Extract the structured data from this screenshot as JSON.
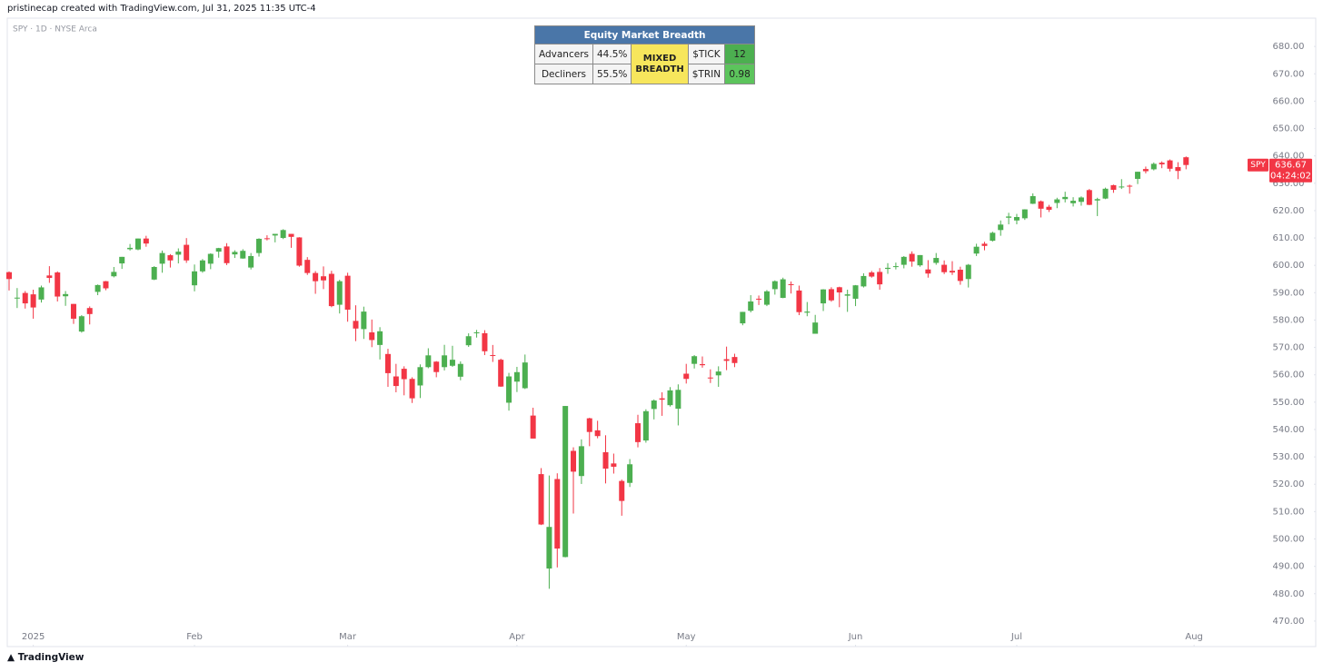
{
  "header": {
    "attribution": "pristinecap created with TradingView.com, Jul 31, 2025 11:35 UTC-4"
  },
  "footer": {
    "brand": "TradingView"
  },
  "breadth_table": {
    "title": "Equity Market Breadth",
    "status": "MIXED BREADTH",
    "rows": [
      [
        "Advancers",
        "44.5%",
        "$TICK",
        "12"
      ],
      [
        "Decliners",
        "55.5%",
        "$TRIN",
        "0.98"
      ]
    ]
  },
  "chart_data": {
    "type": "candlestick",
    "subtitle": "SPY · 1D · NYSE Arca",
    "symbol_label": "SPY",
    "countdown": "04:24:02",
    "up_color": "#4caf50",
    "down_color": "#f23645",
    "grid": false,
    "xlim": [
      0,
      156
    ],
    "xticks": [
      {
        "value": 3,
        "label": "2025"
      },
      {
        "value": 23,
        "label": "Feb"
      },
      {
        "value": 42,
        "label": "Mar"
      },
      {
        "value": 63,
        "label": "Apr"
      },
      {
        "value": 84,
        "label": "May"
      },
      {
        "value": 105,
        "label": "Jun"
      },
      {
        "value": 125,
        "label": "Jul"
      },
      {
        "value": 147,
        "label": "Aug"
      }
    ],
    "ylim": [
      463,
      690
    ],
    "yticks": [
      {
        "value": 470,
        "label": "470.00"
      },
      {
        "value": 480,
        "label": "480.00"
      },
      {
        "value": 490,
        "label": "490.00"
      },
      {
        "value": 500,
        "label": "500.00"
      },
      {
        "value": 510,
        "label": "510.00"
      },
      {
        "value": 520,
        "label": "520.00"
      },
      {
        "value": 530,
        "label": "530.00"
      },
      {
        "value": 540,
        "label": "540.00"
      },
      {
        "value": 550,
        "label": "550.00"
      },
      {
        "value": 560,
        "label": "560.00"
      },
      {
        "value": 570,
        "label": "570.00"
      },
      {
        "value": 580,
        "label": "580.00"
      },
      {
        "value": 590,
        "label": "590.00"
      },
      {
        "value": 600,
        "label": "600.00"
      },
      {
        "value": 610,
        "label": "610.00"
      },
      {
        "value": 620,
        "label": "620.00"
      },
      {
        "value": 630,
        "label": "630.00"
      },
      {
        "value": 640,
        "label": "640.00"
      },
      {
        "value": 650,
        "label": "650.00"
      },
      {
        "value": 660,
        "label": "660.00"
      },
      {
        "value": 670,
        "label": "670.00"
      },
      {
        "value": 680,
        "label": "680.00"
      }
    ],
    "open": [
      597.5,
      587.9,
      589.9,
      589.4,
      587.5,
      596.3,
      597.4,
      588.7,
      585.9,
      575.8,
      584.4,
      590.3,
      594.2,
      596.0,
      600.7,
      605.9,
      605.8,
      609.8,
      594.8,
      600.6,
      603.7,
      603.9,
      607.5,
      592.7,
      597.8,
      600.6,
      605.0,
      606.9,
      604.0,
      602.5,
      599.2,
      604.5,
      609.9,
      610.9,
      610.0,
      611.5,
      610.2,
      602.0,
      597.2,
      596.0,
      596.9,
      585.6,
      596.2,
      579.7,
      576.7,
      575.5,
      570.9,
      567.6,
      559.4,
      562.2,
      558.5,
      556.1,
      562.8,
      564.8,
      562.8,
      563.3,
      559.3,
      570.8,
      575.3,
      575.2,
      567.2,
      565.5,
      549.8,
      557.5,
      555.1,
      545.1,
      523.7,
      489.2,
      521.9,
      493.4,
      532.2,
      523.0,
      544.1,
      539.7,
      531.7,
      527.6,
      521.2,
      520.5,
      542.3,
      536.0,
      547.5,
      551.4,
      548.9,
      547.6,
      560.4,
      564.0,
      563.9,
      559.0,
      559.8,
      565.7,
      566.5,
      578.8,
      583.4,
      587.8,
      585.6,
      591.3,
      588.1,
      593.1,
      590.8,
      582.7,
      575.0,
      586.1,
      591.3,
      592.0,
      588.9,
      587.8,
      592.3,
      597.4,
      597.6,
      598.7,
      599.7,
      600.2,
      604.2,
      600.0,
      598.5,
      600.9,
      600.2,
      598.0,
      598.4,
      595.0,
      604.3,
      607.9,
      608.99,
      612.9,
      617.4,
      616.4,
      617.2,
      622.5,
      623.4,
      621.4,
      622.8,
      624.2,
      622.7,
      623.2,
      627.5,
      623.7,
      624.4,
      629.3,
      628.8,
      629.1,
      631.6,
      635.2,
      635.1,
      637.5,
      638.35,
      635.9,
      639.5
    ],
    "high": [
      597.8,
      591.7,
      590.6,
      591.1,
      592.6,
      599.7,
      597.8,
      590.6,
      585.9,
      581.8,
      585.0,
      593.0,
      594.3,
      599.4,
      603.1,
      607.8,
      609.8,
      610.8,
      599.7,
      605.4,
      604.1,
      606.2,
      609.96,
      600.3,
      602.3,
      604.4,
      606.4,
      608.1,
      605.5,
      605.9,
      604.5,
      609.9,
      610.99,
      611.5,
      613.2,
      611.5,
      610.3,
      603.0,
      597.9,
      599.6,
      598.0,
      594.7,
      597.3,
      585.4,
      584.9,
      580.2,
      577.4,
      569.5,
      564.0,
      563.1,
      559.1,
      563.8,
      569.7,
      565.0,
      570.95,
      570.6,
      564.9,
      575.15,
      576.4,
      576.3,
      570.9,
      565.9,
      560.7,
      562.9,
      567.4,
      547.97,
      525.9,
      523.2,
      524.0,
      548.6,
      533.5,
      536.4,
      544.3,
      543.2,
      537.9,
      531.2,
      521.7,
      529.2,
      545.4,
      547.4,
      551.0,
      553.6,
      555.5,
      556.5,
      564.0,
      567.2,
      566.7,
      562.0,
      563.1,
      570.3,
      567.7,
      583.0,
      589.1,
      588.97,
      590.97,
      594.5,
      595.5,
      594.1,
      592.6,
      586.6,
      581.9,
      591.3,
      592.0,
      592.2,
      591.1,
      592.8,
      597.1,
      597.97,
      599.0,
      600.8,
      601.0,
      603.4,
      605.1,
      603.75,
      601.9,
      604.5,
      601.8,
      601.5,
      599.5,
      600.5,
      607.9,
      608.6,
      612.3,
      616.4,
      619.2,
      618.8,
      620.5,
      626.3,
      623.7,
      622.1,
      624.7,
      626.9,
      624.9,
      625.2,
      627.9,
      624.7,
      628.4,
      629.5,
      631.5,
      629.5,
      634.2,
      636.1,
      637.6,
      638.0,
      638.7,
      637.7,
      639.8
    ],
    "low": [
      590.8,
      584.4,
      584.2,
      580.5,
      586.4,
      593.6,
      586.8,
      585.2,
      578.6,
      575.4,
      578.4,
      589.1,
      590.9,
      595.6,
      598.7,
      605.4,
      605.5,
      606.8,
      594.6,
      597.3,
      599.2,
      600.7,
      600.9,
      590.5,
      597.3,
      598.6,
      602.8,
      600.1,
      602.7,
      602.4,
      598.5,
      603.2,
      609.1,
      608.4,
      609.6,
      606.4,
      599.5,
      596.5,
      589.6,
      591.3,
      584.7,
      582.4,
      579.4,
      572.3,
      573.1,
      570.1,
      565.6,
      555.6,
      553.6,
      552.5,
      549.7,
      551.5,
      562.4,
      559.1,
      561.6,
      562.9,
      558.0,
      570.2,
      573.6,
      567.2,
      564.7,
      555.6,
      546.9,
      553.7,
      554.8,
      536.7,
      505.1,
      481.8,
      489.6,
      493.3,
      509.3,
      520.1,
      533.9,
      536.8,
      520.3,
      523.9,
      508.5,
      519.0,
      533.5,
      535.2,
      543.7,
      545.0,
      548.4,
      541.5,
      556.8,
      562.3,
      562.6,
      557.0,
      555.6,
      561.7,
      562.8,
      578.1,
      582.8,
      585.5,
      585.1,
      589.3,
      588.0,
      589.7,
      581.8,
      581.4,
      575.0,
      583.3,
      586.7,
      584.7,
      583.0,
      585.1,
      591.9,
      595.5,
      591.1,
      596.9,
      598.5,
      598.9,
      599.5,
      599.5,
      595.5,
      600.2,
      596.8,
      596.5,
      592.9,
      591.9,
      603.4,
      605.5,
      608.7,
      610.8,
      615.0,
      615.0,
      616.6,
      622.4,
      617.5,
      619.5,
      620.9,
      623.0,
      621.5,
      621.8,
      622.0,
      618.0,
      624.2,
      626.5,
      627.9,
      626.2,
      629.7,
      633.6,
      634.7,
      635.5,
      634.3,
      631.5,
      635.1
    ],
    "close": [
      595.0,
      588.2,
      586.1,
      584.6,
      591.95,
      595.4,
      588.6,
      589.5,
      580.5,
      581.4,
      582.2,
      592.8,
      591.6,
      597.6,
      603.1,
      606.4,
      609.8,
      607.97,
      599.4,
      604.5,
      601.8,
      605.0,
      601.8,
      597.8,
      601.8,
      604.2,
      606.3,
      600.8,
      604.9,
      605.3,
      603.4,
      609.7,
      609.7,
      611.5,
      612.9,
      610.4,
      599.9,
      597.2,
      594.2,
      594.5,
      585.1,
      594.2,
      583.8,
      576.9,
      583.1,
      572.7,
      575.9,
      560.6,
      555.9,
      558.4,
      551.4,
      562.8,
      567.1,
      561.0,
      567.1,
      565.5,
      563.98,
      574.1,
      575.5,
      568.6,
      567.1,
      555.7,
      559.4,
      560.97,
      564.5,
      536.7,
      505.3,
      504.4,
      496.5,
      548.6,
      524.6,
      533.9,
      539.1,
      537.6,
      525.7,
      526.4,
      513.9,
      527.3,
      535.4,
      546.7,
      550.6,
      550.9,
      554.3,
      554.5,
      558.5,
      566.8,
      563.5,
      558.8,
      561.2,
      565.1,
      564.3,
      582.99,
      586.8,
      587.6,
      590.5,
      594.2,
      594.9,
      592.9,
      582.9,
      583.1,
      579.1,
      591.2,
      587.2,
      590.1,
      589.4,
      592.7,
      596.1,
      595.9,
      593.05,
      599.1,
      599.7,
      603.1,
      601.4,
      603.75,
      597.0,
      602.7,
      597.5,
      597.4,
      594.3,
      600.2,
      606.8,
      607.1,
      611.9,
      614.9,
      617.85,
      617.65,
      620.45,
      625.3,
      620.7,
      620.3,
      624.1,
      625.0,
      623.6,
      624.8,
      622.1,
      624.2,
      628.0,
      627.6,
      628.8,
      628.9,
      634.2,
      634.4,
      637.1,
      636.9,
      635.3,
      634.5,
      636.67
    ]
  }
}
